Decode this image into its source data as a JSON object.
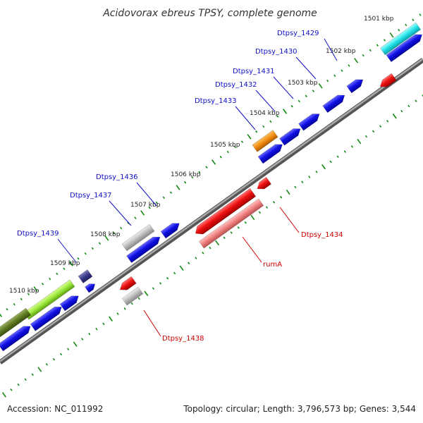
{
  "title": "Acidovorax ebreus TPSY, complete genome",
  "accession_text": "Accession: NC_011992",
  "stats_text": "Topology: circular; Length: 3,796,573 bp; Genes: 3,544",
  "ticks": [
    "1501 kbp",
    "1502 kbp",
    "1503 kbp",
    "1504 kbp",
    "1505 kbp",
    "1506 kbp",
    "1507 kbp",
    "1508 kbp",
    "1509 kbp",
    "1510 kbp"
  ],
  "genes": [
    {
      "label": "Dtpsy_1429",
      "color": "#1010c8"
    },
    {
      "label": "Dtpsy_1430",
      "color": "#1010c8"
    },
    {
      "label": "Dtpsy_1431",
      "color": "#1010c8"
    },
    {
      "label": "Dtpsy_1432",
      "color": "#1010c8"
    },
    {
      "label": "Dtpsy_1433",
      "color": "#1010c8"
    },
    {
      "label": "Dtpsy_1436",
      "color": "#1010c8"
    },
    {
      "label": "Dtpsy_1437",
      "color": "#1010c8"
    },
    {
      "label": "Dtpsy_1439",
      "color": "#1010c8"
    },
    {
      "label": "Dtpsy_1434",
      "color": "#cc0000"
    },
    {
      "label": "rumA",
      "color": "#cc0000"
    },
    {
      "label": "Dtpsy_1438",
      "color": "#cc0000"
    }
  ],
  "colors": {
    "backbone": "#7a7a7a",
    "forward_gene": "#1010e0",
    "reverse_gene": "#ee1111",
    "rrna_cyan": "#22e0e6",
    "misc_orange": "#f08c10",
    "pseudo_grey": "#b8b8b8",
    "pink_feature": "#f08080",
    "tick_green": "#118811"
  }
}
